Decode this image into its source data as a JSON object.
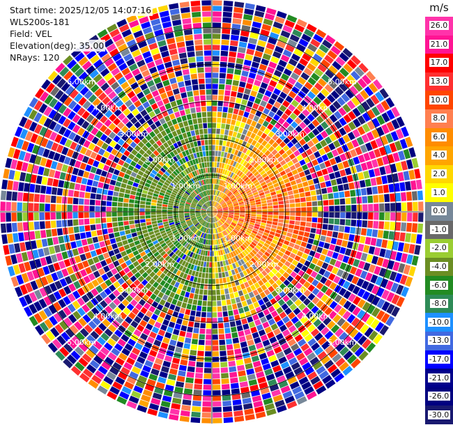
{
  "info": {
    "start_time": "Start time: 2025/12/05 14:07:16",
    "instrument": "WLS200s-181",
    "field": "Field: VEL",
    "elevation": "Elevation(deg): 35.00",
    "nrays": "NRays: 120"
  },
  "colorbar": {
    "unit": "m/s",
    "levels": [
      {
        "value": "26.0",
        "color": "#ff33aa"
      },
      {
        "value": "21.0",
        "color": "#ff1493"
      },
      {
        "value": "17.0",
        "color": "#ff0000"
      },
      {
        "value": "13.0",
        "color": "#ff3030"
      },
      {
        "value": "10.0",
        "color": "#ff4500"
      },
      {
        "value": "8.0",
        "color": "#ff7f50"
      },
      {
        "value": "6.0",
        "color": "#ff8c00"
      },
      {
        "value": "4.0",
        "color": "#ffa500"
      },
      {
        "value": "2.0",
        "color": "#ffd700"
      },
      {
        "value": "1.0",
        "color": "#ffff00"
      },
      {
        "value": "0.0",
        "color": "#778899"
      },
      {
        "value": "-1.0",
        "color": "#696969"
      },
      {
        "value": "-2.0",
        "color": "#9acd32"
      },
      {
        "value": "-4.0",
        "color": "#6b8e23"
      },
      {
        "value": "-6.0",
        "color": "#228b22"
      },
      {
        "value": "-8.0",
        "color": "#2e8b57"
      },
      {
        "value": "-10.0",
        "color": "#1e90ff"
      },
      {
        "value": "-13.0",
        "color": "#4169e1"
      },
      {
        "value": "-17.0",
        "color": "#0000ff"
      },
      {
        "value": "-21.0",
        "color": "#00008b"
      },
      {
        "value": "-26.0",
        "color": "#000080"
      },
      {
        "value": "-30.0",
        "color": "#191970"
      }
    ]
  },
  "chart_data": {
    "type": "heatmap",
    "projection": "ppi-polar",
    "field": "VEL",
    "units": "m/s",
    "n_rays": 120,
    "value_range": [
      -30,
      30
    ],
    "range_rings_km": [
      1,
      2,
      3,
      4,
      5
    ],
    "range_ring_labels": [
      "1.00km",
      "2.00km",
      "3.00km",
      "4.00km",
      "5.00km"
    ],
    "grid": true
  }
}
